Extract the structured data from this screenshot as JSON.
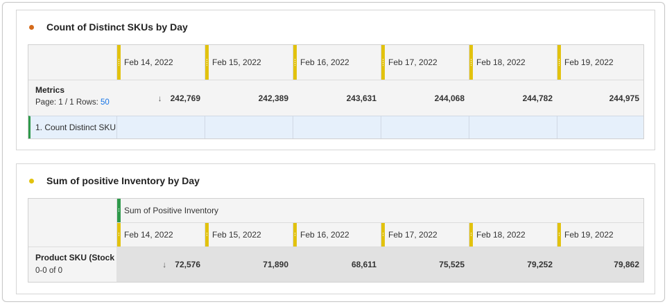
{
  "colors": {
    "panel1_dot": "#d46a1a",
    "panel2_dot": "#e2c20e",
    "date_marker": "#e2c20e",
    "metric_marker": "#2f9a4b",
    "row_accent": "#2f9a4b",
    "link": "#1473e6"
  },
  "panel1": {
    "title": "Count of Distinct SKUs by Day",
    "dates": [
      "Feb 14, 2022",
      "Feb 15, 2022",
      "Feb 16, 2022",
      "Feb 17, 2022",
      "Feb 18, 2022",
      "Feb 19, 2022"
    ],
    "metrics_label": "Metrics",
    "page_text": "Page: 1 / 1  Rows:",
    "rows_value": "50",
    "sort_icon": "↓",
    "totals": [
      "242,769",
      "242,389",
      "243,631",
      "244,068",
      "244,782",
      "244,975"
    ],
    "row_label": "1.  Count Distinct SKU"
  },
  "panel2": {
    "title": "Sum of positive Inventory by Day",
    "metric_header": "Sum of Positive Inventory",
    "dates": [
      "Feb 14, 2022",
      "Feb 15, 2022",
      "Feb 16, 2022",
      "Feb 17, 2022",
      "Feb 18, 2022",
      "Feb 19, 2022"
    ],
    "dimension_label": "Product SKU (Stock",
    "count_text": "0-0 of 0",
    "sort_icon": "↓",
    "totals": [
      "72,576",
      "71,890",
      "68,611",
      "75,525",
      "79,252",
      "79,862"
    ]
  }
}
